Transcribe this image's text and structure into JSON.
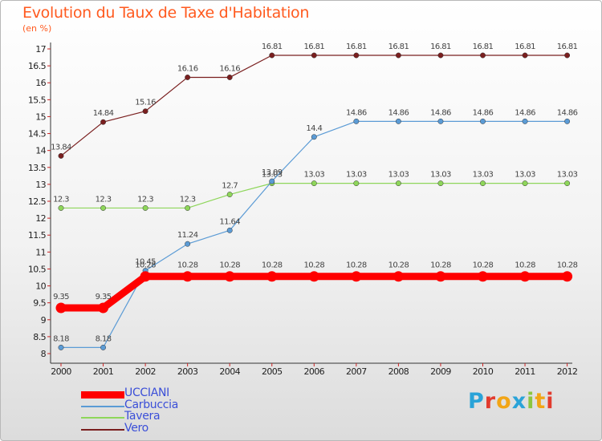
{
  "title": "Evolution du Taux de Taxe d'Habitation",
  "subtitle": "(en %)",
  "logo": {
    "letters": [
      {
        "ch": "P",
        "color": "#2aa3d8"
      },
      {
        "ch": "r",
        "color": "#e23b2e"
      },
      {
        "ch": "o",
        "color": "#f2a516"
      },
      {
        "ch": "x",
        "color": "#2aa3d8"
      },
      {
        "ch": "i",
        "color": "#8cc63f"
      },
      {
        "ch": "t",
        "color": "#f2a516"
      },
      {
        "ch": "i",
        "color": "#e23b2e"
      }
    ]
  },
  "chart_data": {
    "type": "line",
    "x": [
      "2000",
      "2001",
      "2002",
      "2003",
      "2004",
      "2005",
      "2006",
      "2007",
      "2008",
      "2009",
      "2010",
      "2011",
      "2012"
    ],
    "ylim": [
      8,
      17
    ],
    "yticks": [
      "8",
      "8.5",
      "9",
      "9.5",
      "10",
      "10.5",
      "11",
      "11.5",
      "12",
      "12.5",
      "13",
      "13.5",
      "14",
      "14.5",
      "15",
      "15.5",
      "16",
      "16.5",
      "17"
    ],
    "grid": false,
    "legend_position": "bottom-left",
    "series": [
      {
        "name": "Vero",
        "color": "#7a1f1f",
        "thick": false,
        "values": [
          13.84,
          14.84,
          15.16,
          16.16,
          16.16,
          16.81,
          16.81,
          16.81,
          16.81,
          16.81,
          16.81,
          16.81,
          16.81
        ],
        "labels": [
          "13.84",
          "14.84",
          "15.16",
          "16.16",
          "16.16",
          "16.81",
          "16.81",
          "16.81",
          "16.81",
          "16.81",
          "16.81",
          "16.81",
          "16.81"
        ]
      },
      {
        "name": "Tavera",
        "color": "#8ed65a",
        "thick": false,
        "values": [
          12.3,
          12.3,
          12.3,
          12.3,
          12.7,
          13.03,
          13.03,
          13.03,
          13.03,
          13.03,
          13.03,
          13.03,
          13.03
        ],
        "labels": [
          "12.3",
          "12.3",
          "12.3",
          "12.3",
          "12.7",
          "13.03",
          "13.03",
          "13.03",
          "13.03",
          "13.03",
          "13.03",
          "13.03",
          "13.03"
        ]
      },
      {
        "name": "Carbuccia",
        "color": "#5b9bd5",
        "thick": false,
        "values": [
          8.18,
          8.18,
          10.45,
          11.24,
          11.64,
          13.09,
          14.4,
          14.86,
          14.86,
          14.86,
          14.86,
          14.86,
          14.86
        ],
        "labels": [
          "8.18",
          "8.18",
          "10.45",
          "11.24",
          "11.64",
          "13.09",
          "14.4",
          "14.86",
          "14.86",
          "14.86",
          "14.86",
          "14.86",
          "14.86"
        ]
      },
      {
        "name": "UCCIANI",
        "color": "#ff0000",
        "thick": true,
        "values": [
          9.35,
          9.35,
          10.28,
          10.28,
          10.28,
          10.28,
          10.28,
          10.28,
          10.28,
          10.28,
          10.28,
          10.28,
          10.28
        ],
        "labels": [
          "9.35",
          "9.35",
          "10.28",
          "10.28",
          "10.28",
          "10.28",
          "10.28",
          "10.28",
          "10.28",
          "10.28",
          "10.28",
          "10.28",
          "10.28"
        ]
      }
    ],
    "legend": [
      {
        "name": "UCCIANI",
        "color": "#ff0000",
        "thick": true
      },
      {
        "name": "Carbuccia",
        "color": "#5b9bd5",
        "thick": false
      },
      {
        "name": "Tavera",
        "color": "#8ed65a",
        "thick": false
      },
      {
        "name": "Vero",
        "color": "#7a1f1f",
        "thick": false
      }
    ]
  }
}
